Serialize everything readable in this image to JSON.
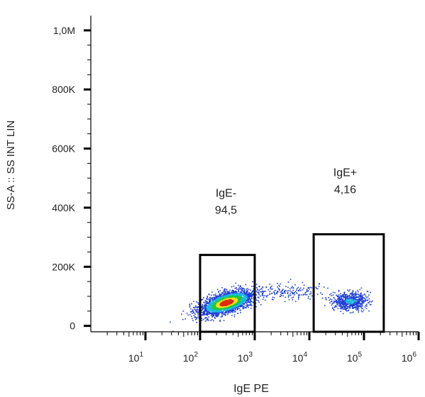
{
  "chart_data": {
    "type": "scatter",
    "title": "",
    "xlabel": "IgE PE",
    "ylabel": "SS-A :: SS INT LIN",
    "x_scale": "log",
    "xlim": [
      1,
      1000000
    ],
    "ylim": [
      -20000,
      1050000
    ],
    "y_ticks": [
      {
        "value": 1000000,
        "label": "1,0M"
      },
      {
        "value": 800000,
        "label": "800K"
      },
      {
        "value": 600000,
        "label": "600K"
      },
      {
        "value": 400000,
        "label": "400K"
      },
      {
        "value": 200000,
        "label": "200K"
      },
      {
        "value": 0,
        "label": "0"
      }
    ],
    "x_ticks": [
      {
        "value": 10,
        "base": "10",
        "exp": "1"
      },
      {
        "value": 100,
        "base": "10",
        "exp": "2"
      },
      {
        "value": 1000,
        "base": "10",
        "exp": "3"
      },
      {
        "value": 10000,
        "base": "10",
        "exp": "4"
      },
      {
        "value": 100000,
        "base": "10",
        "exp": "5"
      },
      {
        "value": 1000000,
        "base": "10",
        "exp": "6"
      }
    ],
    "gates": [
      {
        "name": "IgE-",
        "percent": "94,5",
        "x_range": [
          100,
          1000
        ],
        "y_range": [
          -20000,
          240000
        ]
      },
      {
        "name": "IgE+",
        "percent": "4,16",
        "x_range": [
          12000,
          230000
        ],
        "y_range": [
          -20000,
          310000
        ]
      }
    ],
    "populations": [
      {
        "label": "IgE- cluster",
        "x_center": 300,
        "y_center": 80000,
        "x_log_spread": 0.25,
        "y_spread": 22000,
        "relative_density": "high"
      },
      {
        "label": "intermediate events",
        "x_center": 4000,
        "y_center": 118000,
        "x_log_spread": 0.3,
        "y_spread": 15000,
        "relative_density": "low"
      },
      {
        "label": "IgE+ cluster",
        "x_center": 55000,
        "y_center": 85000,
        "x_log_spread": 0.16,
        "y_spread": 15000,
        "relative_density": "medium"
      }
    ],
    "grid": false,
    "legend": "none",
    "colors": {
      "density_low": "#1f3fd6",
      "density_mid1": "#17b8e0",
      "density_mid2": "#1ec83a",
      "density_mid3": "#f0e020",
      "density_high": "#e02810",
      "gate_stroke": "#000000",
      "axis": "#000000"
    }
  }
}
